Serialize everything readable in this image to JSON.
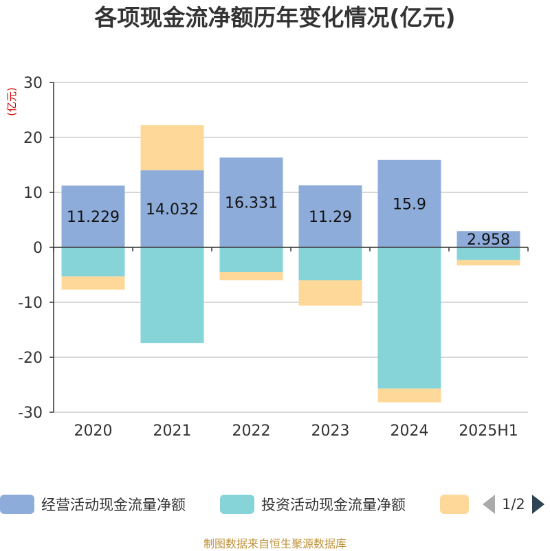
{
  "title": "各项现金流净额历年变化情况(亿元)",
  "y_unit": "(亿元)",
  "source": "制图数据来自恒生聚源数据库",
  "legend": {
    "items": [
      {
        "label": "经营活动现金流量净额",
        "color": "#8eacda"
      },
      {
        "label": "投资活动现金流量净额",
        "color": "#86d4d8"
      },
      {
        "label": "",
        "color": "#fdd899"
      }
    ],
    "page_indicator": "1/2"
  },
  "chart_data": {
    "type": "bar",
    "stacked": true,
    "title": "各项现金流净额历年变化情况(亿元)",
    "ylabel": "(亿元)",
    "categories": [
      "2020",
      "2021",
      "2022",
      "2023",
      "2024",
      "2025H1"
    ],
    "ylim": [
      -30,
      30
    ],
    "yticks": [
      30,
      20,
      10,
      0,
      -10,
      -20,
      -30
    ],
    "grid": true,
    "legend_position": "bottom",
    "series": [
      {
        "name": "经营活动现金流量净额",
        "color": "#8eacda",
        "values": [
          11.229,
          14.032,
          16.331,
          11.29,
          15.9,
          2.958
        ],
        "labels": [
          "11.229",
          "14.032",
          "16.331",
          "11.29",
          "15.9",
          "2.958"
        ]
      },
      {
        "name": "投资活动现金流量净额",
        "color": "#86d4d8",
        "values": [
          -5.3,
          -17.4,
          -4.5,
          -6.0,
          -25.7,
          -2.3
        ]
      },
      {
        "color": "#fdd899",
        "values": [
          -2.4,
          8.2,
          -1.5,
          -4.6,
          -2.5,
          -1.0
        ]
      }
    ]
  }
}
